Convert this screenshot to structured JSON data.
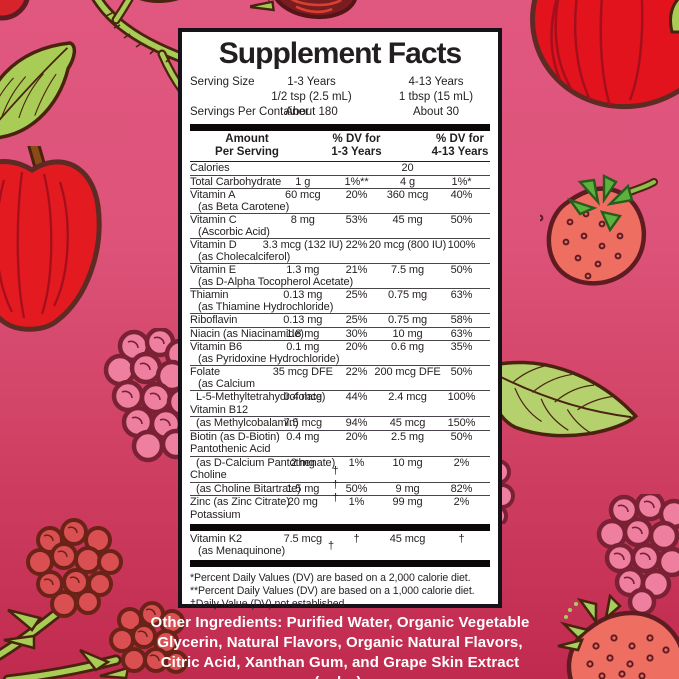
{
  "panel": {
    "title": "Supplement Facts",
    "serving": {
      "serving_size_label": "Serving Size",
      "col1_header": "1-3 Years",
      "col1_amount": "1/2 tsp (2.5 mL)",
      "col2_header": "4-13 Years",
      "col2_amount": "1 tbsp (15 mL)",
      "servings_label": "Servings Per Container",
      "col1_servings": "About 180",
      "col2_servings": "About 30"
    },
    "header": {
      "amount_line1": "Amount",
      "amount_line2": "Per Serving",
      "dv1_line1": "% DV for",
      "dv1_line2": "1-3 Years",
      "dv2_line1": "% DV for",
      "dv2_line2": "4-13 Years"
    },
    "dagger": "†",
    "rows": [
      {
        "name": "Calories",
        "a2": "20",
        "h": 1,
        "sep": false
      },
      {
        "name": "Total Carbohydrate",
        "a1": "1 g",
        "d1": "1%**",
        "a2": "4 g",
        "d2": "1%*",
        "h": 1,
        "sep": true
      },
      {
        "name": "Vitamin A",
        "name2": "(as Beta Carotene)",
        "a1": "60 mcg",
        "d1": "20%",
        "a2": "360 mcg",
        "d2": "40%",
        "h": 2,
        "sep": true
      },
      {
        "name": "Vitamin C",
        "name2": "(Ascorbic Acid)",
        "a1": "8 mg",
        "d1": "53%",
        "a2": "45 mg",
        "d2": "50%",
        "h": 2,
        "sep": true
      },
      {
        "name": "Vitamin D",
        "name2": "(as Cholecalciferol)",
        "a1": "3.3 mcg (132 IU)",
        "d1": "22%",
        "a2": "20 mcg (800 IU)",
        "d2": "100%",
        "h": 2,
        "sep": true
      },
      {
        "name": "Vitamin E",
        "name2": "(as D-Alpha Tocopherol Acetate)",
        "a1": "1.3 mg",
        "d1": "21%",
        "a2": "7.5 mg",
        "d2": "50%",
        "h": 2,
        "sep": true
      },
      {
        "name": "Thiamin",
        "name2": "(as Thiamine Hydrochloride)",
        "a1": "0.13 mg",
        "d1": "25%",
        "a2": "0.75 mg",
        "d2": "63%",
        "h": 2,
        "sep": true
      },
      {
        "name": "Riboflavin",
        "a1": "0.13 mg",
        "d1": "25%",
        "a2": "0.75 mg",
        "d2": "58%",
        "h": 1,
        "sep": true
      },
      {
        "name": "Niacin (as Niacinamide)",
        "a1": "1.8 mg",
        "d1": "30%",
        "a2": "10 mg",
        "d2": "63%",
        "h": 1,
        "sep": true
      },
      {
        "name": "Vitamin B6",
        "name2": "(as Pyridoxine Hydrochloride)",
        "a1": "0.1 mg",
        "d1": "20%",
        "a2": "0.6 mg",
        "d2": "35%",
        "h": 2,
        "sep": true
      },
      {
        "name": "Folate",
        "name2": "(as Calcium",
        "a1": "35 mcg DFE",
        "d1": "22%",
        "a2": "200 mcg DFE",
        "d2": "50%",
        "h": 2,
        "sep": true
      },
      {
        "name": "L-5-Methyltetrahydrofolate)",
        "ind": true,
        "a1": "0.4 mcg",
        "d1": "44%",
        "a2": "2.4 mcg",
        "d2": "100%",
        "h": 1,
        "sep": true
      },
      {
        "name": "Vitamin B12",
        "h": 1,
        "sep": false
      },
      {
        "name": "(as Methylcobalamin)",
        "ind": true,
        "a1": "7.5 mcg",
        "d1": "94%",
        "a2": "45 mcg",
        "d2": "150%",
        "h": 1,
        "sep": true
      },
      {
        "name": "Biotin (as D-Biotin)",
        "a1": "0.4 mg",
        "d1": "20%",
        "a2": "2.5 mg",
        "d2": "50%",
        "h": 1,
        "sep": true
      },
      {
        "name": "Pantothenic Acid",
        "h": 1,
        "sep": false
      },
      {
        "name": "(as D-Calcium Pantothenate)",
        "ind": true,
        "a1": "2 mg",
        "d1": "1%",
        "a2": "10 mg",
        "d2": "2%",
        "h": 1,
        "sep": true
      },
      {
        "name": "Choline",
        "dag": true,
        "h": 1,
        "sep": false
      },
      {
        "name": "(as Choline Bitartrate)",
        "ind": true,
        "a1": "1.5 mg",
        "d1": "50%",
        "a2": "9 mg",
        "d2": "82%",
        "dag": true,
        "h": 1,
        "sep": true
      },
      {
        "name": "Zinc (as Zinc Citrate)",
        "a1": "20 mg",
        "d1": "1%",
        "a2": "99 mg",
        "d2": "2%",
        "dag": true,
        "h": 1,
        "sep": true
      },
      {
        "name": "Potassium",
        "h": 1,
        "sep": false
      },
      {
        "name": "Vitamin K2",
        "name2": "(as Menaquinone)",
        "a1": "7.5 mcg",
        "d1": "†",
        "a2": "45 mcg",
        "d2": "†",
        "dag": true,
        "h": 2,
        "sep": false,
        "k2": true,
        "bar_before": true,
        "bar_after": true
      }
    ],
    "footnotes": [
      "*Percent Daily Values (DV) are based on a 2,000 calorie diet.",
      "**Percent Daily Values (DV) are based on a 1,000 calorie diet.",
      "†Daily Value (DV) not established."
    ]
  },
  "other_ingredients": "Other Ingredients: Purified Water, Organic Vegetable Glycerin, Natural Flavors, Organic Natural Flavors, Citric Acid, Xanthan Gum, and Grape Skin Extract (color).",
  "decorations": [
    "branch-leaves-top-left",
    "berry-top-left-corner",
    "apple-left",
    "raspberry-pink-left",
    "raspberries-bottom-left",
    "strawberry-top-center",
    "apple-top-right",
    "leaf-top-right-corner",
    "strawberry-right",
    "leaf-right",
    "raspberry-pink-near-panel",
    "raspberry-bottom-right",
    "strawberry-bottom-right"
  ],
  "colors": {
    "background_top": "#e05780",
    "background_bottom": "#c02a4e",
    "panel_background": "#ffffff",
    "panel_border": "#17121a",
    "panel_text": "#231f20",
    "ingredients_text": "#ffffff",
    "apple_red": "#e3131d",
    "strawberry_coral": "#ee6e62",
    "raspberry_pink": "#ee7f9e",
    "raspberry_red": "#d94f52",
    "leaf_green": "#a9cc57",
    "outline_brown": "#4a230f",
    "outline_maroon": "#5e1c22"
  }
}
